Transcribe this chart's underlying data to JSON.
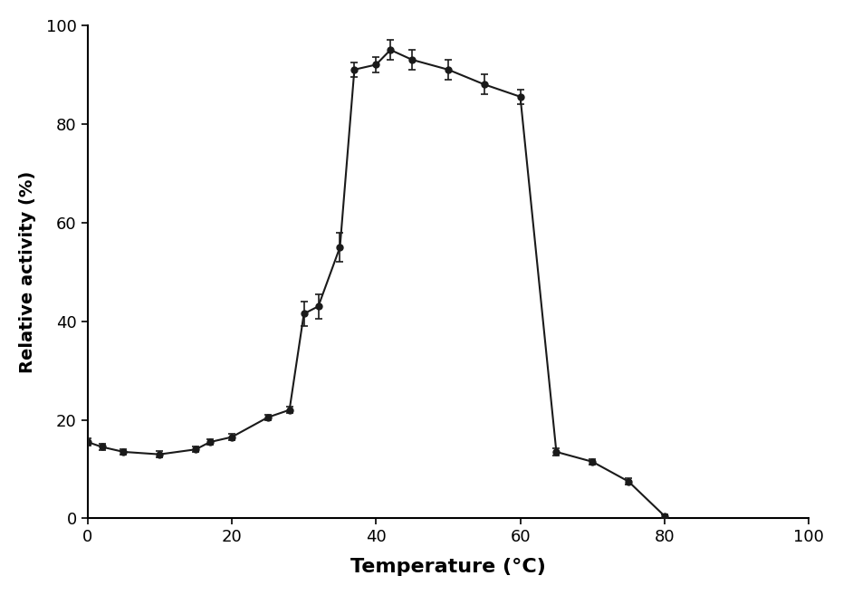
{
  "x": [
    0,
    2,
    5,
    10,
    15,
    17,
    20,
    25,
    28,
    30,
    32,
    35,
    37,
    40,
    42,
    45,
    50,
    55,
    60,
    65,
    70,
    75,
    80
  ],
  "y": [
    15.5,
    14.5,
    13.5,
    13.0,
    14.0,
    15.5,
    16.5,
    20.5,
    22.0,
    41.5,
    43.0,
    55.0,
    91.0,
    92.0,
    95.0,
    93.0,
    91.0,
    88.0,
    85.5,
    13.5,
    11.5,
    7.5,
    0.5
  ],
  "yerr": [
    0.8,
    0.6,
    0.6,
    0.6,
    0.6,
    0.6,
    0.6,
    0.6,
    0.6,
    2.5,
    2.5,
    3.0,
    1.5,
    1.5,
    2.0,
    2.0,
    2.0,
    2.0,
    1.5,
    0.8,
    0.6,
    0.6,
    0.4
  ],
  "xlabel": "Temperature (°C)",
  "ylabel": "Relative activity (%)",
  "xlim": [
    0,
    100
  ],
  "ylim": [
    0,
    100
  ],
  "xticks": [
    0,
    20,
    40,
    60,
    80,
    100
  ],
  "yticks": [
    0,
    20,
    40,
    60,
    80,
    100
  ],
  "line_color": "#1a1a1a",
  "marker_size": 5,
  "line_width": 1.5,
  "xlabel_fontsize": 16,
  "ylabel_fontsize": 14,
  "tick_fontsize": 13,
  "background_color": "#ffffff"
}
